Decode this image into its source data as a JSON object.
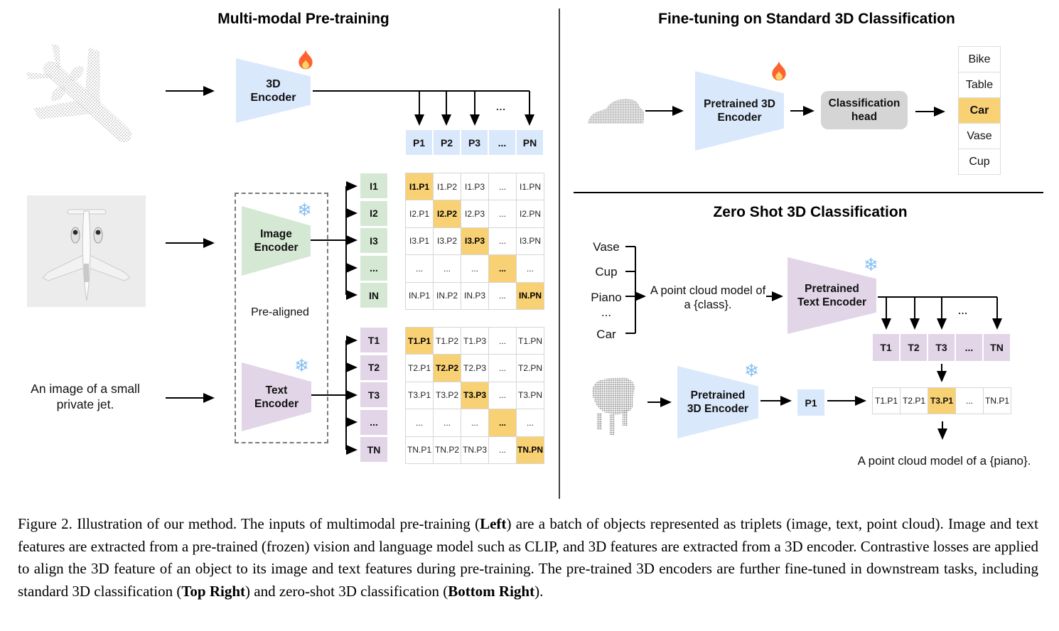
{
  "left": {
    "title": "Multi-modal Pre-training",
    "encoder3d_label": "3D Encoder",
    "image_encoder_label": "Image Encoder",
    "text_encoder_label": "Text Encoder",
    "prealigned_label": "Pre-aligned",
    "image_caption": "An image of a small private jet.",
    "col_ellipsis": "...",
    "p_row": [
      "P1",
      "P2",
      "P3",
      "...",
      "PN"
    ],
    "i_col": [
      "I1",
      "I2",
      "I3",
      "...",
      "IN"
    ],
    "t_col": [
      "T1",
      "T2",
      "T3",
      "...",
      "TN"
    ],
    "matrix_i": [
      [
        "I1.P1",
        "I1.P2",
        "I1.P3",
        "...",
        "I1.PN"
      ],
      [
        "I2.P1",
        "I2.P2",
        "I2.P3",
        "...",
        "I2.PN"
      ],
      [
        "I3.P1",
        "I3.P2",
        "I3.P3",
        "...",
        "I3.PN"
      ],
      [
        "...",
        "...",
        "...",
        "...",
        "..."
      ],
      [
        "IN.P1",
        "IN.P2",
        "IN.P3",
        "...",
        "IN.PN"
      ]
    ],
    "matrix_t": [
      [
        "T1.P1",
        "T1.P2",
        "T1.P3",
        "...",
        "T1.PN"
      ],
      [
        "T2.P1",
        "T2.P2",
        "T2.P3",
        "...",
        "T2.PN"
      ],
      [
        "T3.P1",
        "T3.P2",
        "T3.P3",
        "...",
        "T3.PN"
      ],
      [
        "...",
        "...",
        "...",
        "...",
        "..."
      ],
      [
        "TN.P1",
        "TN.P2",
        "TN.P3",
        "...",
        "TN.PN"
      ]
    ]
  },
  "top_right": {
    "title": "Fine-tuning on Standard 3D Classification",
    "encoder_label": "Pretrained 3D Encoder",
    "head_label": "Classification head",
    "classes": [
      "Bike",
      "Table",
      "Car",
      "Vase",
      "Cup"
    ],
    "highlight_class": "Car"
  },
  "bottom_right": {
    "title": "Zero Shot 3D Classification",
    "class_prompts": [
      "Vase",
      "Cup",
      "Piano",
      "...",
      "Car"
    ],
    "prompt_line1": "A point cloud model of",
    "prompt_line2": "a {class}.",
    "text_encoder_label": "Pretrained Text Encoder",
    "encoder3d_label": "Pretrained 3D Encoder",
    "t_row": [
      "T1",
      "T2",
      "T3",
      "...",
      "TN"
    ],
    "row_ellipsis": "...",
    "p1_label": "P1",
    "result_row": [
      "T1.P1",
      "T2.P1",
      "T3.P1",
      "...",
      "TN.P1"
    ],
    "result_highlight_index": 2,
    "output_prompt": "A point cloud model of a {piano}."
  },
  "caption": {
    "segments": [
      {
        "text": "Figure 2. Illustration of our method.  The inputs of multimodal pre-training (",
        "bold": false
      },
      {
        "text": "Left",
        "bold": true
      },
      {
        "text": ") are a batch of objects represented as triplets (image, text, point cloud).  Image and text features are extracted from a pre-trained (frozen) vision and language model such as CLIP, and 3D features are extracted from a 3D encoder.  Contrastive losses are applied to align the 3D feature of an object to its image and text features during pre-training.  The pre-trained 3D encoders are further fine-tuned in downstream tasks, including standard 3D classification (",
        "bold": false
      },
      {
        "text": "Top Right",
        "bold": true
      },
      {
        "text": ") and zero-shot 3D classification (",
        "bold": false
      },
      {
        "text": "Bottom Right",
        "bold": true
      },
      {
        "text": ").",
        "bold": false
      }
    ]
  },
  "icons": {
    "snowflake_glyph": "❄",
    "flame_meaning": "trainable",
    "snowflake_meaning": "frozen"
  },
  "colors": {
    "blue": "#dae8fc",
    "green": "#d5e8d4",
    "purple": "#e1d5e7",
    "orange": "#f8d174",
    "grayhead": "#d5d5d5"
  }
}
